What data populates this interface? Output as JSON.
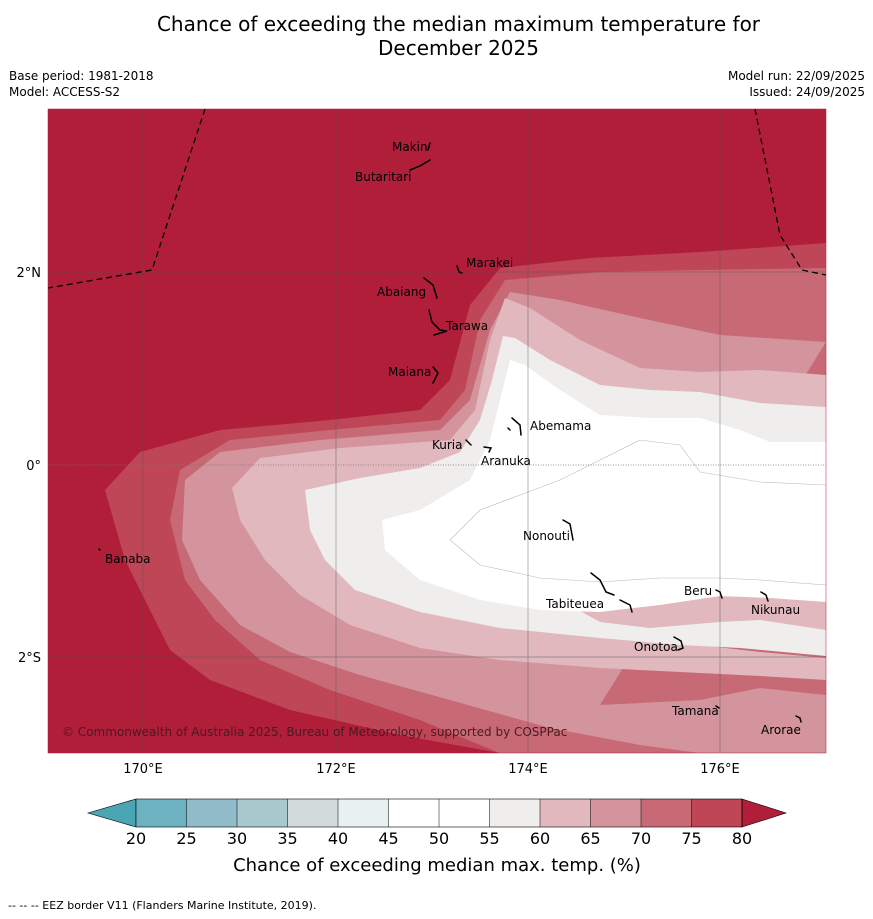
{
  "title": {
    "line1": "Chance of exceeding the median maximum temperature for",
    "line2": "December 2025"
  },
  "meta": {
    "base_period": "Base period: 1981-2018",
    "model": "Model: ACCESS-S2",
    "model_run": "Model run: 22/09/2025",
    "issued": "Issued: 24/09/2025"
  },
  "axes": {
    "x_ticks": [
      "170°E",
      "172°E",
      "174°E",
      "176°E"
    ],
    "y_ticks": [
      "2°N",
      "0°",
      "2°S"
    ]
  },
  "places": [
    "Makin",
    "Butaritari",
    "Marakei",
    "Abaiang",
    "Tarawa",
    "Maiana",
    "Abemama",
    "Kuria",
    "Aranuka",
    "Nonouti",
    "Banaba",
    "Beru",
    "Nikunau",
    "Tabiteuea",
    "Onotoa",
    "Tamana",
    "Arorae"
  ],
  "copyright": "© Commonwealth of Australia 2025, Bureau of Meteorology, supported by COSPPac",
  "colorbar": {
    "ticks": [
      "20",
      "25",
      "30",
      "35",
      "40",
      "45",
      "50",
      "55",
      "60",
      "65",
      "70",
      "75",
      "80"
    ],
    "colors": [
      "#6cb2c0",
      "#8fbcc8",
      "#a9c8cd",
      "#d3dadc",
      "#e9f0f2",
      "#ffffff",
      "#ffffff",
      "#efeeec",
      "#e0b8be",
      "#d4949d",
      "#c76a75",
      "#bf4656"
    ],
    "under_color": "#4aa5b4",
    "over_color": "#b01e3a",
    "label": "Chance of exceeding median max. temp. (%)"
  },
  "chart_data": {
    "type": "filled-contour-map",
    "variable": "Chance of exceeding median max. temp. (%)",
    "lon_range": [
      "169°E",
      "177°E"
    ],
    "lat_range": [
      "3°S",
      "3.7°N"
    ],
    "levels": [
      20,
      25,
      30,
      35,
      40,
      45,
      50,
      55,
      60,
      65,
      70,
      75,
      80
    ],
    "max_region": "north and west of map (>80%)",
    "min_region": "central-east near equator (45-50%)"
  },
  "footnote": "-- -- -- EEZ border V11 (Flanders Marine Institute, 2019)."
}
